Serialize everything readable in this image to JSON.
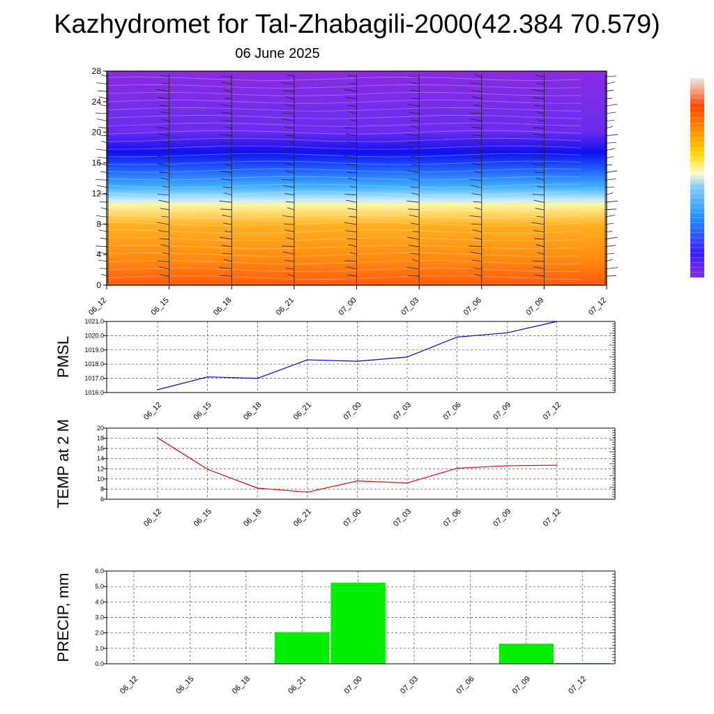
{
  "page": {
    "title": "Kazhydromet for Tal-Zhabagili-2000(42.384 70.579)",
    "subtitle": "06 June 2025"
  },
  "chart_data": [
    {
      "id": "cross-section",
      "type": "heatmap",
      "title": "",
      "xlabel": "",
      "ylabel": "",
      "x": [
        "06_12",
        "06_15",
        "06_18",
        "06_21",
        "07_00",
        "07_03",
        "07_06",
        "07_09",
        "07_12"
      ],
      "ylim": [
        0,
        28
      ],
      "yticks": [
        0,
        4,
        8,
        12,
        16,
        20,
        24,
        28
      ],
      "grid": false,
      "legend": "colorbar-right",
      "colorbar_colors": [
        "#8a2be2",
        "#3a1cff",
        "#1e90ff",
        "#87cefa",
        "#fffacd",
        "#ffd700",
        "#ff8c00",
        "#ff4500",
        "#cc0000"
      ]
    },
    {
      "id": "pmsl",
      "type": "line",
      "ylabel": "PMSL",
      "x": [
        "06_12",
        "06_15",
        "06_18",
        "06_21",
        "07_00",
        "07_03",
        "07_06",
        "07_09",
        "07_12"
      ],
      "series": [
        {
          "values": [
            1016.2,
            1017.1,
            1017.0,
            1018.3,
            1018.2,
            1018.5,
            1019.9,
            1020.2,
            1021.0
          ],
          "color": "#0000cc"
        }
      ],
      "ylim": [
        1016.0,
        1021.0
      ],
      "yticks": [
        "1016.0",
        "1017.0",
        "1018.0",
        "1019.0",
        "1020.0",
        "1021.0"
      ],
      "grid": true
    },
    {
      "id": "temp2m",
      "type": "line",
      "ylabel": "TEMP at 2 M",
      "x": [
        "06_12",
        "06_15",
        "06_18",
        "06_21",
        "07_00",
        "07_03",
        "07_06",
        "07_09",
        "07_12"
      ],
      "series": [
        {
          "values": [
            18.1,
            11.9,
            8.2,
            7.4,
            9.6,
            9.2,
            12.1,
            12.6,
            12.7
          ],
          "color": "#dd0000"
        }
      ],
      "ylim": [
        6,
        20
      ],
      "yticks": [
        "6",
        "8",
        "10",
        "12",
        "14",
        "16",
        "18",
        "20"
      ],
      "grid": true
    },
    {
      "id": "precip",
      "type": "bar",
      "ylabel": "PRECIP, mm",
      "categories": [
        "06_12",
        "06_15",
        "06_18",
        "06_21",
        "07_00",
        "07_03",
        "07_06",
        "07_09",
        "07_12"
      ],
      "values": [
        0,
        0,
        0,
        2.05,
        5.25,
        0,
        0,
        1.3,
        0.05
      ],
      "color": "#00ee00",
      "ylim": [
        0,
        6
      ],
      "yticks": [
        "0.0",
        "1.0",
        "2.0",
        "3.0",
        "4.0",
        "5.0",
        "6.0"
      ],
      "grid": true
    }
  ]
}
